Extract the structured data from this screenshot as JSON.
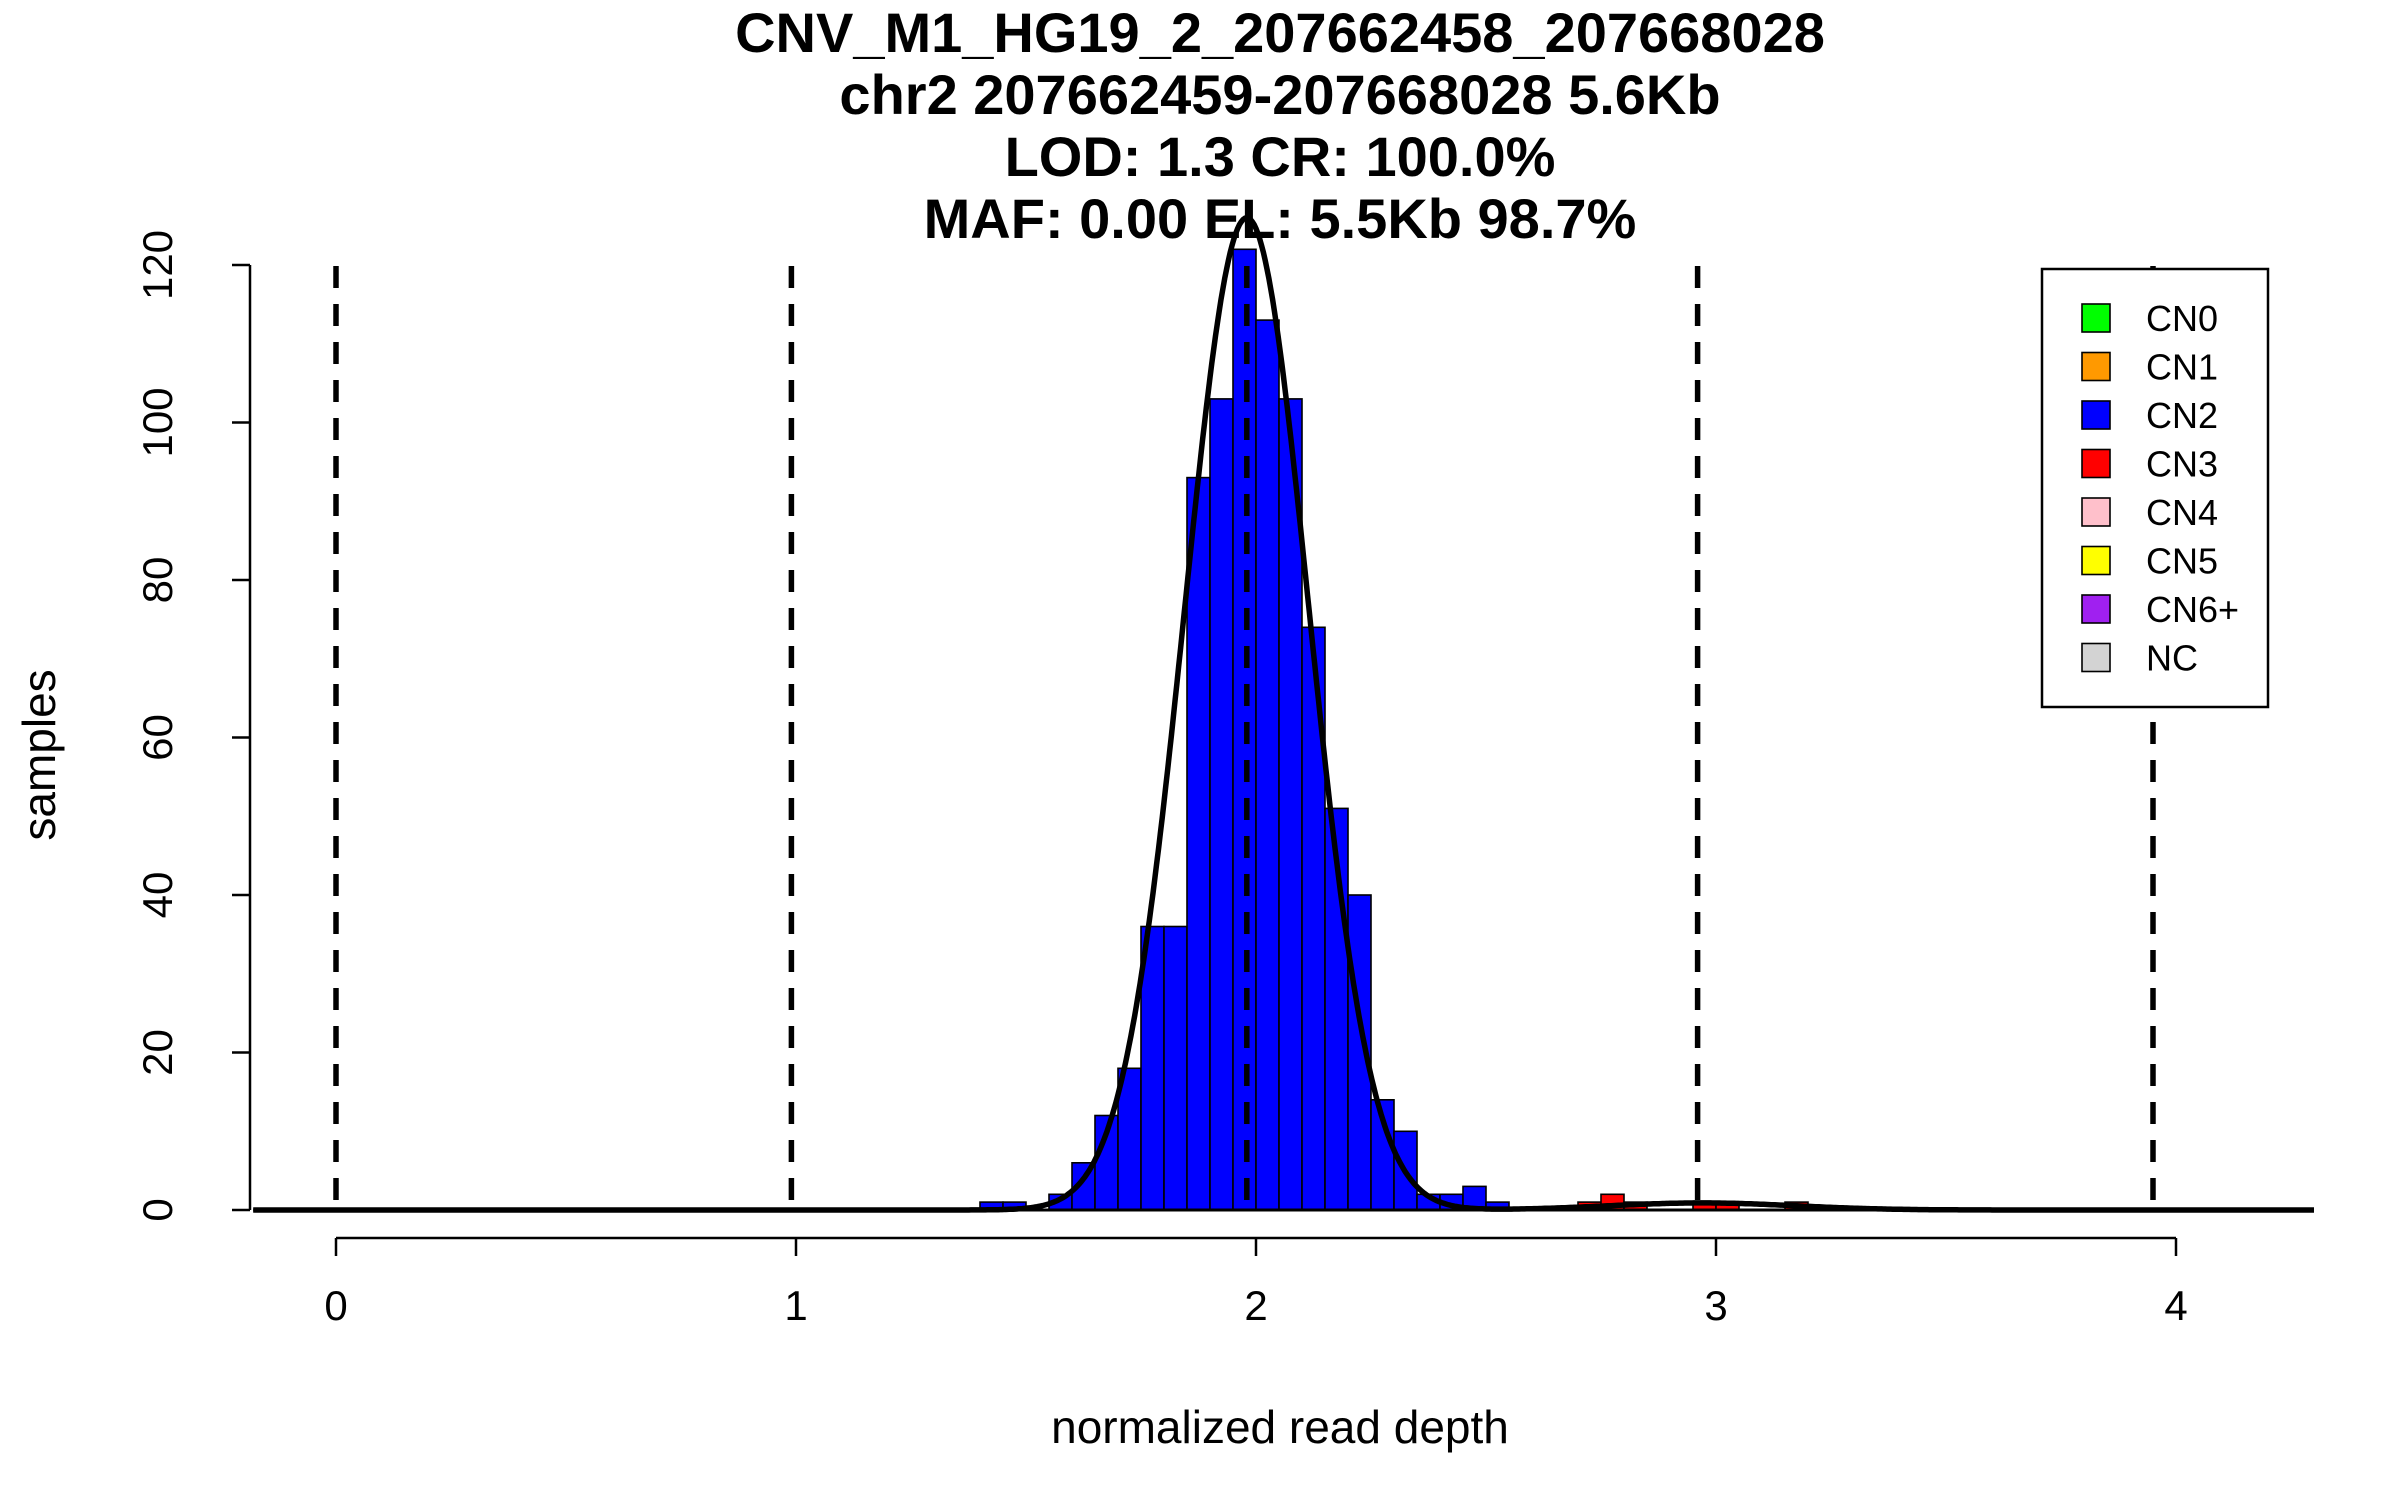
{
  "chart_data": {
    "type": "bar",
    "title_lines": [
      "CNV_M1_HG19_2_207662458_207668028",
      "chr2 207662459-207668028 5.6Kb",
      "LOD: 1.3 CR: 100.0%",
      "MAF: 0.00 EL: 5.5Kb 98.7%"
    ],
    "xlabel": "normalized read depth",
    "ylabel": "samples",
    "xlim": [
      -0.18,
      4.3
    ],
    "ylim": [
      0,
      120
    ],
    "xticks": [
      "0",
      "1",
      "2",
      "3",
      "4"
    ],
    "yticks": [
      "0",
      "20",
      "40",
      "60",
      "80",
      "100",
      "120"
    ],
    "bin_width": 0.05,
    "histogram_bins": [
      {
        "x0": 1.4,
        "count": 1,
        "color": "#0000ff"
      },
      {
        "x0": 1.45,
        "count": 1,
        "color": "#0000ff"
      },
      {
        "x0": 1.55,
        "count": 2,
        "color": "#0000ff"
      },
      {
        "x0": 1.6,
        "count": 6,
        "color": "#0000ff"
      },
      {
        "x0": 1.65,
        "count": 12,
        "color": "#0000ff"
      },
      {
        "x0": 1.7,
        "count": 18,
        "color": "#0000ff"
      },
      {
        "x0": 1.75,
        "count": 36,
        "color": "#0000ff"
      },
      {
        "x0": 1.8,
        "count": 36,
        "color": "#0000ff"
      },
      {
        "x0": 1.85,
        "count": 93,
        "color": "#0000ff"
      },
      {
        "x0": 1.9,
        "count": 103,
        "color": "#0000ff"
      },
      {
        "x0": 1.95,
        "count": 122,
        "color": "#0000ff"
      },
      {
        "x0": 2.0,
        "count": 113,
        "color": "#0000ff"
      },
      {
        "x0": 2.05,
        "count": 103,
        "color": "#0000ff"
      },
      {
        "x0": 2.1,
        "count": 74,
        "color": "#0000ff"
      },
      {
        "x0": 2.15,
        "count": 51,
        "color": "#0000ff"
      },
      {
        "x0": 2.2,
        "count": 40,
        "color": "#0000ff"
      },
      {
        "x0": 2.25,
        "count": 14,
        "color": "#0000ff"
      },
      {
        "x0": 2.3,
        "count": 10,
        "color": "#0000ff"
      },
      {
        "x0": 2.35,
        "count": 2,
        "color": "#0000ff"
      },
      {
        "x0": 2.4,
        "count": 2,
        "color": "#0000ff"
      },
      {
        "x0": 2.45,
        "count": 3,
        "color": "#0000ff"
      },
      {
        "x0": 2.5,
        "count": 1,
        "color": "#0000ff"
      },
      {
        "x0": 2.7,
        "count": 1,
        "color": "#ff0000"
      },
      {
        "x0": 2.75,
        "count": 2,
        "color": "#ff0000"
      },
      {
        "x0": 2.8,
        "count": 1,
        "color": "#ff0000"
      },
      {
        "x0": 2.95,
        "count": 1,
        "color": "#ff0000"
      },
      {
        "x0": 3.0,
        "count": 1,
        "color": "#ff0000"
      },
      {
        "x0": 3.15,
        "count": 1,
        "color": "#ff0000"
      }
    ],
    "cn_thresholds": [
      0,
      0.99,
      1.98,
      2.96,
      3.95
    ],
    "fit_curves": [
      {
        "mean": 1.98,
        "sd": 0.135,
        "peak": 126
      },
      {
        "mean": 2.97,
        "sd": 0.2,
        "peak": 0.9
      }
    ],
    "baseline_segments": [
      [
        -0.18,
        0.17
      ],
      [
        0.6,
        4.12
      ]
    ],
    "legend": {
      "placement": "top-right",
      "entries": [
        {
          "label": "CN0",
          "color": "#00ff00"
        },
        {
          "label": "CN1",
          "color": "#ff9900"
        },
        {
          "label": "CN2",
          "color": "#0000ff"
        },
        {
          "label": "CN3",
          "color": "#ff0000"
        },
        {
          "label": "CN4",
          "color": "#ffc0cb"
        },
        {
          "label": "CN5",
          "color": "#ffff00"
        },
        {
          "label": "CN6+",
          "color": "#a020f0"
        },
        {
          "label": "NC",
          "color": "#d3d3d3"
        }
      ]
    }
  }
}
